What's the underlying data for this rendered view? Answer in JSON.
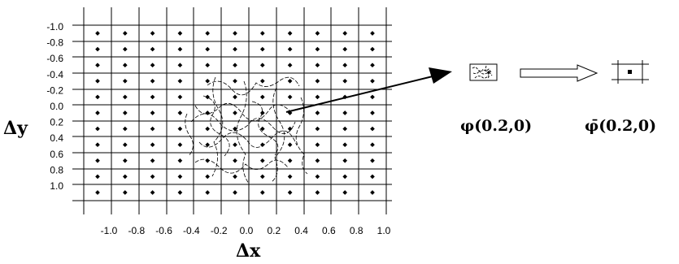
{
  "figure": {
    "x_axis_title": "Δx",
    "y_axis_title": "Δy",
    "x_ticks": [
      "-1.0",
      "-0.8",
      "-0.6",
      "-0.4",
      "-0.2",
      "0.0",
      "0.2",
      "0.4",
      "0.6",
      "0.8",
      "1.0"
    ],
    "y_ticks": [
      "-1.0",
      "-0.8",
      "-0.6",
      "-0.4",
      "-0.2",
      "0.0",
      "0.2",
      "0.4",
      "0.6",
      "0.8",
      "1.0"
    ],
    "sample_dot_count": {
      "columns": 11,
      "rows": 11
    },
    "cluttered_label": "φ(0.2,0)",
    "clean_label": "φ̄(0.2,0)",
    "colors": {
      "ink": "#000000",
      "background": "#ffffff"
    }
  }
}
